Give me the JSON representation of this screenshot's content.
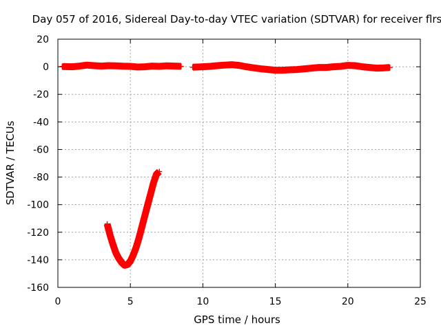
{
  "chart_data": {
    "type": "scatter",
    "title": "Day 057 of 2016, Sidereal Day-to-day VTEC variation (SDTVAR) for receiver flrs",
    "xlabel": "GPS time / hours",
    "ylabel": "SDTVAR / TECUs",
    "xlim": [
      0,
      25
    ],
    "ylim": [
      -160,
      20
    ],
    "x_ticks": [
      0,
      5,
      10,
      15,
      20,
      25
    ],
    "y_ticks": [
      20,
      0,
      -20,
      -40,
      -60,
      -80,
      -100,
      -120,
      -140,
      -160
    ],
    "grid": true,
    "marker": "plus",
    "color": "#ff0000",
    "series": [
      {
        "x": [
          0.3,
          1.0,
          1.5,
          2.0,
          2.5,
          3.0,
          3.5,
          4.0,
          4.5,
          5.0,
          5.5,
          6.0,
          6.5,
          7.0,
          7.5,
          8.0,
          8.5
        ],
        "y": [
          0.2,
          0.0,
          0.5,
          1.2,
          0.8,
          0.5,
          0.8,
          0.7,
          0.4,
          0.3,
          -0.2,
          0.0,
          0.5,
          0.3,
          0.7,
          0.5,
          0.3
        ]
      },
      {
        "x": [
          9.3,
          10.0,
          10.5,
          11.0,
          11.5,
          12.0,
          12.5,
          13.0,
          13.5,
          14.0,
          14.5,
          15.0,
          15.5,
          16.0,
          16.5,
          17.0,
          17.5,
          18.0,
          18.5,
          19.0,
          19.5,
          20.0,
          20.5,
          21.0,
          21.5,
          22.0,
          22.5,
          22.9
        ],
        "y": [
          -0.3,
          0.0,
          0.3,
          0.8,
          1.2,
          1.5,
          1.0,
          0.0,
          -0.8,
          -1.5,
          -2.0,
          -2.5,
          -2.5,
          -2.2,
          -2.0,
          -1.5,
          -1.0,
          -0.5,
          -0.5,
          0.0,
          0.3,
          1.0,
          0.8,
          0.0,
          -0.5,
          -1.0,
          -0.8,
          -0.5
        ]
      },
      {
        "x": [
          3.4,
          3.6,
          3.8,
          4.0,
          4.2,
          4.4,
          4.6,
          4.8,
          5.0,
          5.2,
          5.4,
          5.6,
          5.8,
          6.0,
          6.2,
          6.4,
          6.6,
          6.8,
          7.0
        ],
        "y": [
          -114,
          -122,
          -129,
          -135,
          -139,
          -142,
          -144,
          -143.5,
          -141,
          -136.5,
          -131,
          -124,
          -116,
          -108,
          -100,
          -92,
          -84,
          -78,
          -76
        ]
      }
    ]
  }
}
